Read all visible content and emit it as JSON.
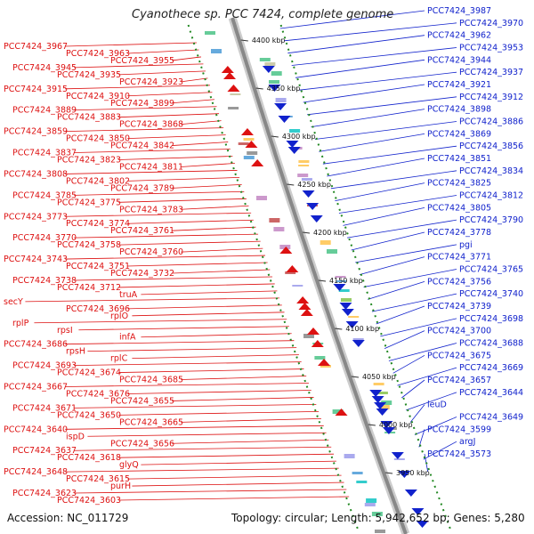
{
  "title": "Cyanothece sp. PCC 7424, complete genome",
  "footer": {
    "accession": "Accession: NC_011729",
    "summary": "Topology: circular; Length: 5,942,652 bp; Genes: 5,280"
  },
  "colors": {
    "forward_strand": "#dd1111",
    "reverse_strand": "#1122cc",
    "backbone": "#888888",
    "tick_dots": "#228822"
  },
  "ticks": [
    "4400 kbp",
    "4350 kbp",
    "4300 kbp",
    "4250 kbp",
    "4200 kbp",
    "4150 kbp",
    "4100 kbp",
    "4050 kbp",
    "4000 kbp",
    "3950 kbp"
  ],
  "left_labels": [
    "PCC7424_3967",
    "PCC7424_3963",
    "PCC7424_3955",
    "PCC7424_3945",
    "PCC7424_3935",
    "PCC7424_3923",
    "PCC7424_3915",
    "PCC7424_3910",
    "PCC7424_3899",
    "PCC7424_3889",
    "PCC7424_3883",
    "PCC7424_3868",
    "PCC7424_3859",
    "PCC7424_3850",
    "PCC7424_3842",
    "PCC7424_3837",
    "PCC7424_3823",
    "PCC7424_3811",
    "PCC7424_3808",
    "PCC7424_3802",
    "PCC7424_3789",
    "PCC7424_3785",
    "PCC7424_3775",
    "PCC7424_3783",
    "PCC7424_3773",
    "PCC7424_3774",
    "PCC7424_3761",
    "PCC7424_3770",
    "PCC7424_3758",
    "PCC7424_3760",
    "PCC7424_3743",
    "PCC7424_3751",
    "PCC7424_3732",
    "PCC7424_3738",
    "PCC7424_3712",
    "truA",
    "secY",
    "PCC7424_3696",
    "rplO",
    "rplP",
    "rpsI",
    "infA",
    "PCC7424_3686",
    "rpsH",
    "rplC",
    "PCC7424_3693",
    "PCC7424_3674",
    "PCC7424_3685",
    "PCC7424_3667",
    "PCC7424_3676",
    "PCC7424_3655",
    "PCC7424_3671",
    "PCC7424_3650",
    "PCC7424_3665",
    "PCC7424_3640",
    "ispD",
    "PCC7424_3656",
    "PCC7424_3637",
    "PCC7424_3618",
    "glyQ",
    "PCC7424_3648",
    "PCC7424_3615",
    "purH",
    "PCC7424_3623",
    "PCC7424_3603"
  ],
  "right_labels": [
    "PCC7424_3987",
    "PCC7424_3970",
    "PCC7424_3962",
    "PCC7424_3953",
    "PCC7424_3944",
    "PCC7424_3937",
    "PCC7424_3921",
    "PCC7424_3912",
    "PCC7424_3898",
    "PCC7424_3886",
    "PCC7424_3869",
    "PCC7424_3856",
    "PCC7424_3851",
    "PCC7424_3834",
    "PCC7424_3825",
    "PCC7424_3812",
    "PCC7424_3805",
    "PCC7424_3790",
    "PCC7424_3778",
    "pgi",
    "PCC7424_3771",
    "PCC7424_3765",
    "PCC7424_3756",
    "PCC7424_3740",
    "PCC7424_3739",
    "PCC7424_3698",
    "PCC7424_3700",
    "PCC7424_3688",
    "PCC7424_3675",
    "PCC7424_3669",
    "PCC7424_3657",
    "PCC7424_3644",
    "leuD",
    "PCC7424_3649",
    "PCC7424_3599",
    "argJ",
    "PCC7424_3573"
  ]
}
